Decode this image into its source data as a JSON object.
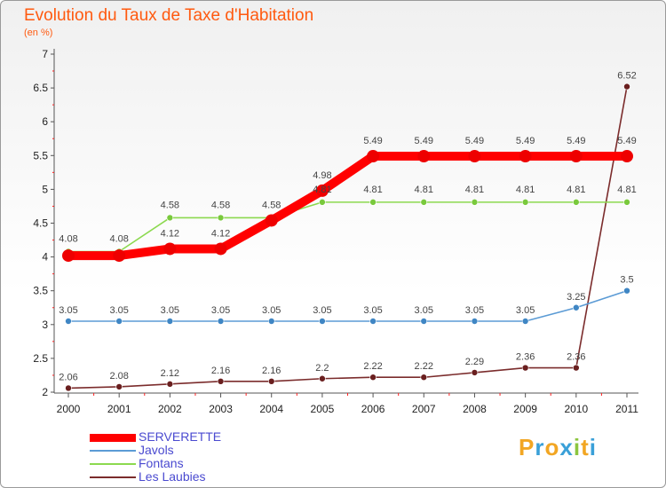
{
  "header": {
    "title": "Evolution du Taux de Taxe d'Habitation",
    "subtitle": "(en %)"
  },
  "logo": {
    "letters": [
      {
        "ch": "P",
        "color": "#f2a623"
      },
      {
        "ch": "r",
        "color": "#3aa0d8"
      },
      {
        "ch": "o",
        "color": "#f2a623"
      },
      {
        "ch": "x",
        "color": "#3aa0d8"
      },
      {
        "ch": "i",
        "color": "#8cc63f"
      },
      {
        "ch": "t",
        "color": "#f2a623"
      },
      {
        "ch": "i",
        "color": "#3aa0d8"
      }
    ]
  },
  "chart_data": {
    "type": "line",
    "title": "Evolution du Taux de Taxe d'Habitation",
    "ylabel": "(en %)",
    "xlabel": "",
    "categories": [
      "2000",
      "2001",
      "2002",
      "2003",
      "2004",
      "2005",
      "2006",
      "2007",
      "2008",
      "2009",
      "2010",
      "2011"
    ],
    "ylim": [
      2,
      7
    ],
    "yticks": [
      "2",
      "2.5",
      "3",
      "3.5",
      "4",
      "4.5",
      "5",
      "5.5",
      "6",
      "6.5",
      "7"
    ],
    "grid": false,
    "legend_position": "bottom-left",
    "series": [
      {
        "name": "SERVERETTE",
        "color": "#ff0000",
        "marker_color": "#ee0000",
        "values": [
          4.02,
          4.02,
          4.12,
          4.12,
          4.54,
          4.98,
          5.49,
          5.49,
          5.49,
          5.49,
          5.49,
          5.49
        ],
        "labels": [
          "",
          "",
          "4.12",
          "4.12",
          "",
          "4.98",
          "5.49",
          "5.49",
          "5.49",
          "5.49",
          "5.49",
          "5.49"
        ]
      },
      {
        "name": "Javols",
        "color": "#5b9bd5",
        "marker_color": "#3f86c4",
        "values": [
          3.05,
          3.05,
          3.05,
          3.05,
          3.05,
          3.05,
          3.05,
          3.05,
          3.05,
          3.05,
          3.25,
          3.5
        ],
        "labels": [
          "3.05",
          "3.05",
          "3.05",
          "3.05",
          "3.05",
          "3.05",
          "3.05",
          "3.05",
          "3.05",
          "3.05",
          "3.25",
          "3.5"
        ]
      },
      {
        "name": "Fontans",
        "color": "#8cd94f",
        "marker_color": "#79c93c",
        "values": [
          4.08,
          4.08,
          4.58,
          4.58,
          4.58,
          4.81,
          4.81,
          4.81,
          4.81,
          4.81,
          4.81,
          4.81
        ],
        "labels": [
          "4.08",
          "4.08",
          "4.58",
          "4.58",
          "4.58",
          "4.81",
          "4.81",
          "4.81",
          "4.81",
          "4.81",
          "4.81",
          "4.81"
        ]
      },
      {
        "name": "Les Laubies",
        "color": "#7b2c2c",
        "marker_color": "#6a1f1f",
        "values": [
          2.06,
          2.08,
          2.12,
          2.16,
          2.16,
          2.2,
          2.22,
          2.22,
          2.29,
          2.36,
          2.36,
          6.52
        ],
        "labels": [
          "2.06",
          "2.08",
          "2.12",
          "2.16",
          "2.16",
          "2.2",
          "2.22",
          "2.22",
          "2.29",
          "2.36",
          "2.36",
          "6.52"
        ]
      }
    ]
  }
}
